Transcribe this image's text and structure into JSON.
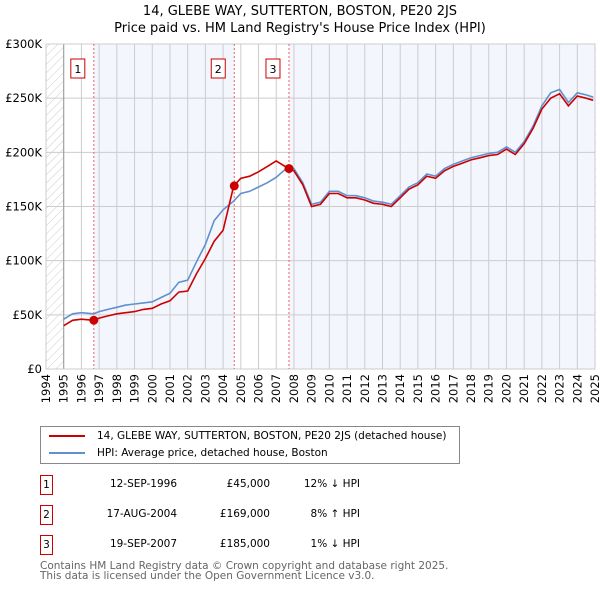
{
  "chart_data": {
    "type": "line",
    "title": "14, GLEBE WAY, SUTTERTON, BOSTON, PE20 2JS",
    "subtitle": "Price paid vs. HM Land Registry's House Price Index (HPI)",
    "xlim": [
      1994,
      2025
    ],
    "ylim": [
      0,
      300000
    ],
    "y_ticks": [
      {
        "v": 0,
        "label": "£0"
      },
      {
        "v": 50000,
        "label": "£50K"
      },
      {
        "v": 100000,
        "label": "£100K"
      },
      {
        "v": 150000,
        "label": "£150K"
      },
      {
        "v": 200000,
        "label": "£200K"
      },
      {
        "v": 250000,
        "label": "£250K"
      },
      {
        "v": 300000,
        "label": "£300K"
      }
    ],
    "x_ticks": [
      "1994",
      "1995",
      "1996",
      "1997",
      "1998",
      "1999",
      "2000",
      "2001",
      "2002",
      "2003",
      "2004",
      "2005",
      "2006",
      "2007",
      "2008",
      "2009",
      "2010",
      "2011",
      "2012",
      "2013",
      "2014",
      "2015",
      "2016",
      "2017",
      "2018",
      "2019",
      "2020",
      "2021",
      "2022",
      "2023",
      "2024",
      "2025"
    ],
    "x": [
      1995,
      1995.5,
      1996,
      1996.7,
      1997,
      1997.5,
      1998,
      1998.5,
      1999,
      1999.5,
      2000,
      2000.5,
      2001,
      2001.5,
      2002,
      2002.5,
      2003,
      2003.5,
      2004,
      2004.6,
      2005,
      2005.5,
      2006,
      2006.5,
      2007,
      2007.7,
      2008,
      2008.5,
      2009,
      2009.5,
      2010,
      2010.5,
      2011,
      2011.5,
      2012,
      2012.5,
      2013,
      2013.5,
      2014,
      2014.5,
      2015,
      2015.5,
      2016,
      2016.5,
      2017,
      2017.5,
      2018,
      2018.5,
      2019,
      2019.5,
      2020,
      2020.5,
      2021,
      2021.5,
      2022,
      2022.5,
      2023,
      2023.5,
      2024,
      2024.5,
      2024.9
    ],
    "series": [
      {
        "name": "14, GLEBE WAY, SUTTERTON, BOSTON, PE20 2JS (detached house)",
        "color": "#cc0000",
        "values": [
          40000,
          45000,
          46000,
          45000,
          47000,
          49000,
          51000,
          52000,
          53000,
          55000,
          56000,
          60000,
          63000,
          71000,
          72000,
          88000,
          102000,
          118000,
          128000,
          169000,
          176000,
          178000,
          182000,
          187000,
          192000,
          185000,
          183000,
          170000,
          150000,
          152000,
          162000,
          162000,
          158000,
          158000,
          156000,
          153000,
          152000,
          150000,
          158000,
          166000,
          170000,
          178000,
          176000,
          183000,
          187000,
          190000,
          193000,
          195000,
          197000,
          198000,
          203000,
          198000,
          208000,
          222000,
          240000,
          250000,
          254000,
          243000,
          252000,
          250000,
          248000
        ]
      },
      {
        "name": "HPI: Average price, detached house, Boston",
        "color": "#6090d0",
        "values": [
          46000,
          51000,
          52000,
          51000,
          53000,
          55000,
          57000,
          59000,
          60000,
          61000,
          62000,
          66000,
          70000,
          80000,
          82000,
          99000,
          115000,
          137000,
          147000,
          155000,
          162000,
          164000,
          168000,
          172000,
          177000,
          187000,
          185000,
          172000,
          152000,
          154000,
          164000,
          164000,
          160000,
          160000,
          158000,
          155000,
          154000,
          152000,
          160000,
          168000,
          172000,
          180000,
          178000,
          185000,
          189000,
          192000,
          195000,
          197000,
          199000,
          200000,
          205000,
          200000,
          210000,
          224000,
          243000,
          255000,
          258000,
          246000,
          255000,
          253000,
          251000
        ]
      }
    ],
    "sales": [
      {
        "num": "1",
        "x": 1996.7,
        "price": 45000,
        "date": "12-SEP-1996",
        "price_label": "£45,000",
        "hpi": "12% ↓ HPI"
      },
      {
        "num": "2",
        "x": 2004.63,
        "price": 169000,
        "date": "17-AUG-2004",
        "price_label": "£169,000",
        "hpi": "8% ↑ HPI"
      },
      {
        "num": "3",
        "x": 2007.72,
        "price": 185000,
        "date": "19-SEP-2007",
        "price_label": "£185,000",
        "hpi": "1% ↓ HPI"
      }
    ],
    "grid": true,
    "legend_placement": "below"
  },
  "footer": [
    "Contains HM Land Registry data © Crown copyright and database right 2025.",
    "This data is licensed under the Open Government Licence v3.0."
  ]
}
